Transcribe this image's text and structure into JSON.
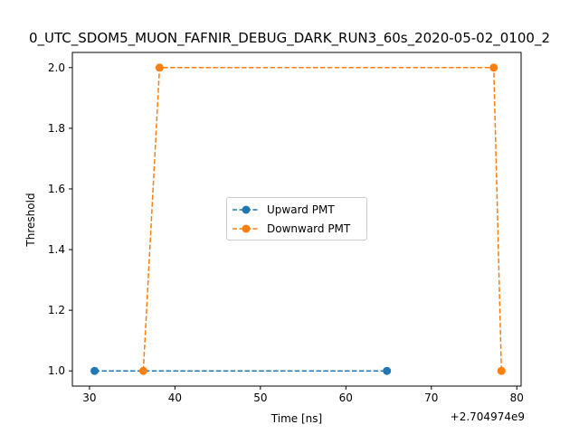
{
  "chart_data": {
    "type": "line",
    "title": "0_UTC_SDOM5_MUON_FAFNIR_DEBUG_DARK_RUN3_60s_2020-05-02_0100_2",
    "xlabel": "Time [ns]",
    "ylabel": "Threshold",
    "x_offset_label": "+2.704974e9",
    "xlim": [
      28,
      80.5
    ],
    "ylim": [
      0.95,
      2.05
    ],
    "xticks": [
      30,
      40,
      50,
      60,
      70,
      80
    ],
    "yticks": [
      1.0,
      1.2,
      1.4,
      1.6,
      1.8,
      2.0
    ],
    "ytick_labels": [
      "1.0",
      "1.2",
      "1.4",
      "1.6",
      "1.8",
      "2.0"
    ],
    "grid": false,
    "legend_position": "center",
    "series": [
      {
        "name": "Upward PMT",
        "color": "#1f77b4",
        "style": "dashed",
        "marker": "circle",
        "x": [
          30.6,
          64.8
        ],
        "y": [
          1.0,
          1.0
        ]
      },
      {
        "name": "Downward PMT",
        "color": "#ff7f0e",
        "style": "dashed",
        "marker": "circle",
        "x": [
          36.3,
          38.2,
          77.3,
          78.2
        ],
        "y": [
          1.0,
          2.0,
          2.0,
          1.0
        ]
      }
    ]
  }
}
